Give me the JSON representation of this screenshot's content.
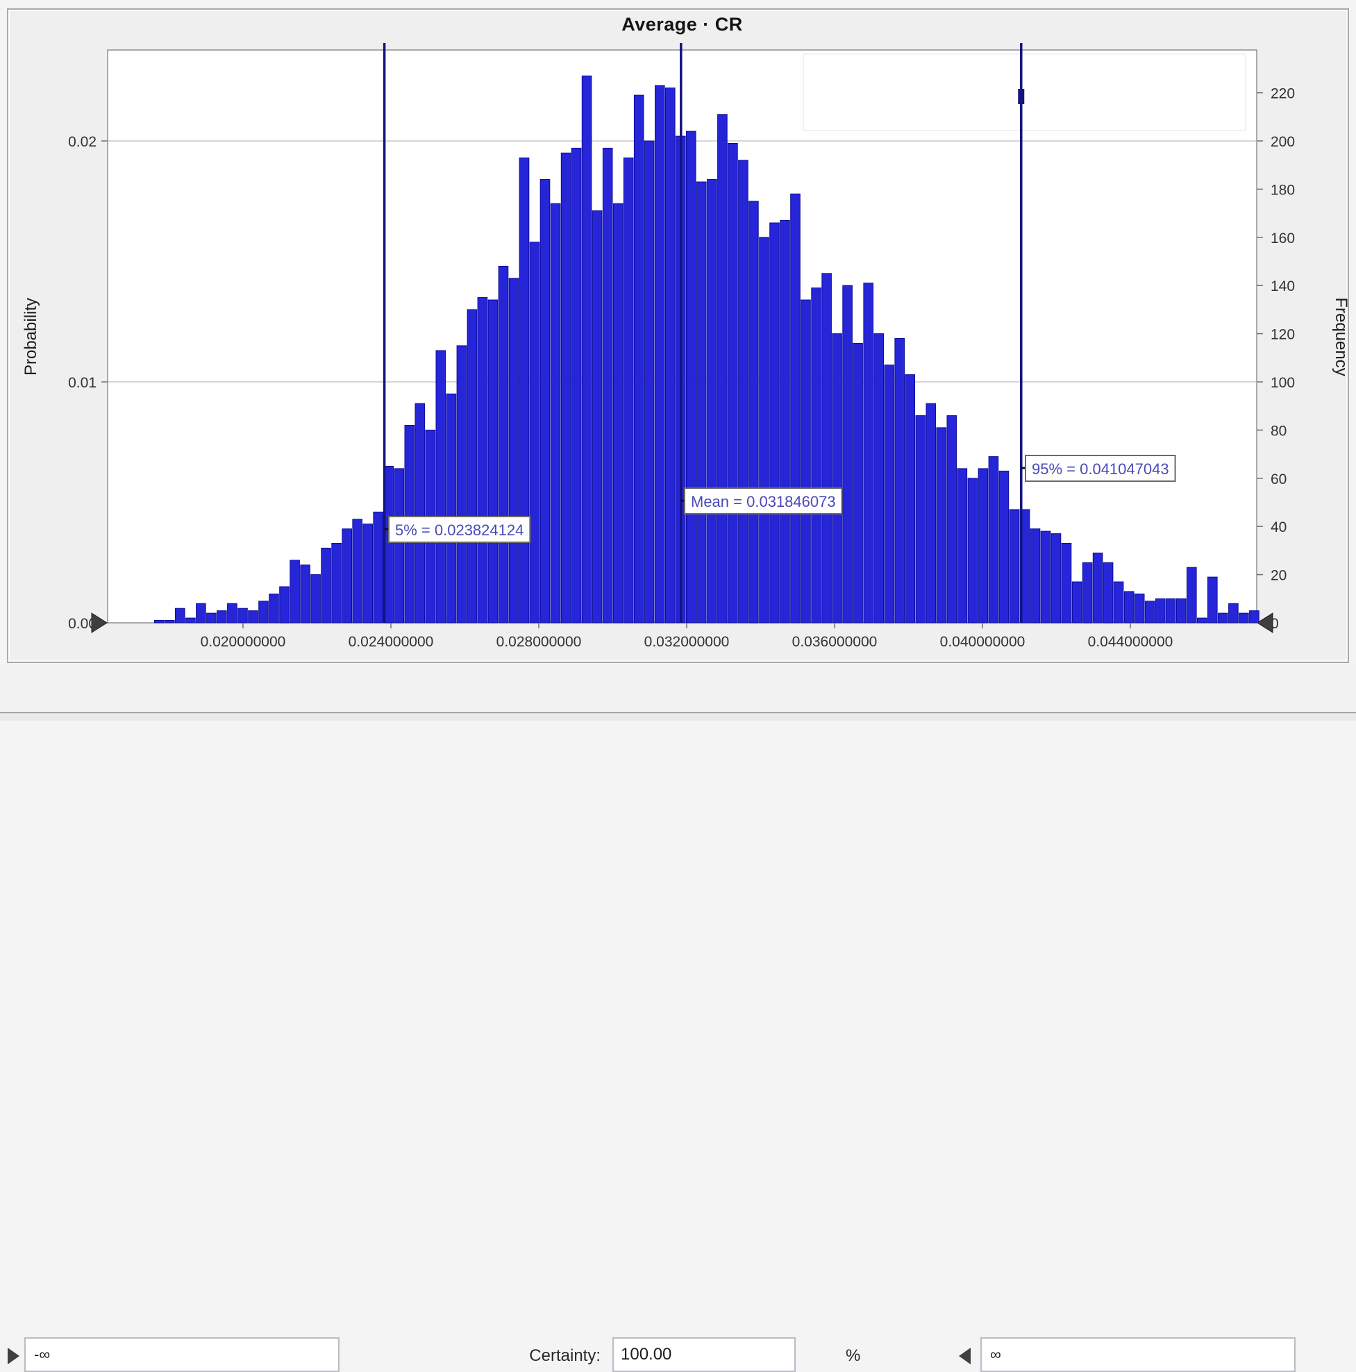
{
  "window": {
    "title": "Average · CR"
  },
  "controls": {
    "lower_bound_value": "-∞",
    "certainty_label": "Certainty:",
    "certainty_value": "100.00",
    "percent_label": "%",
    "upper_bound_value": "∞"
  },
  "colors": {
    "bar_fill": "#2626d8",
    "bar_stroke": "#0d0d9b",
    "marker_line": "#14147d",
    "marker_text": "#4a4ab8",
    "gridline": "#bebebe",
    "axis_line": "#8f8f8f",
    "tick_text": "#323232",
    "plot_bg": "#ffffff",
    "chart_bg": "#efefef"
  },
  "chart_data": {
    "type": "bar",
    "title": "Average · CR",
    "ylabel_left": "Probability",
    "ylabel_right": "Frequency",
    "legend_position": "none",
    "grid": "horizontal",
    "x_ticks": [
      "0.020000000",
      "0.024000000",
      "0.028000000",
      "0.032000000",
      "0.036000000",
      "0.040000000",
      "0.044000000"
    ],
    "left_ticks": [
      {
        "label": "0.00",
        "freq": 0
      },
      {
        "label": "0.01",
        "freq": 100
      },
      {
        "label": "0.02",
        "freq": 200
      }
    ],
    "right_ticks": [
      0,
      20,
      40,
      60,
      80,
      100,
      120,
      140,
      160,
      180,
      200,
      220
    ],
    "xlim": [
      0.01634,
      0.04724
    ],
    "ylim_frequency": [
      0,
      237
    ],
    "ylim_probability": [
      0.0,
      0.0237
    ],
    "bins": {
      "start_value": 0.017746,
      "width_value": 0.000282
    },
    "frequencies": [
      1,
      1,
      6,
      2,
      8,
      4,
      5,
      8,
      6,
      5,
      9,
      12,
      15,
      26,
      24,
      20,
      31,
      33,
      39,
      43,
      41,
      46,
      65,
      64,
      82,
      91,
      80,
      113,
      95,
      115,
      130,
      135,
      134,
      148,
      143,
      193,
      158,
      184,
      174,
      195,
      197,
      227,
      171,
      197,
      174,
      193,
      219,
      200,
      223,
      222,
      202,
      204,
      183,
      184,
      211,
      199,
      192,
      175,
      160,
      166,
      167,
      178,
      134,
      139,
      145,
      120,
      140,
      116,
      141,
      120,
      107,
      118,
      103,
      86,
      91,
      81,
      86,
      64,
      60,
      64,
      69,
      63,
      47,
      47,
      39,
      38,
      37,
      33,
      17,
      25,
      29,
      25,
      17,
      13,
      12,
      9,
      10,
      10,
      10,
      23,
      2,
      19,
      4,
      8,
      4,
      5
    ],
    "markers": [
      {
        "name": "p5",
        "label": "5% = 0.023824124",
        "value": 0.023824124
      },
      {
        "name": "mean",
        "label": "Mean = 0.031846073",
        "value": 0.031846073
      },
      {
        "name": "p95",
        "label": "95% = 0.041047043",
        "value": 0.041047043
      }
    ]
  }
}
